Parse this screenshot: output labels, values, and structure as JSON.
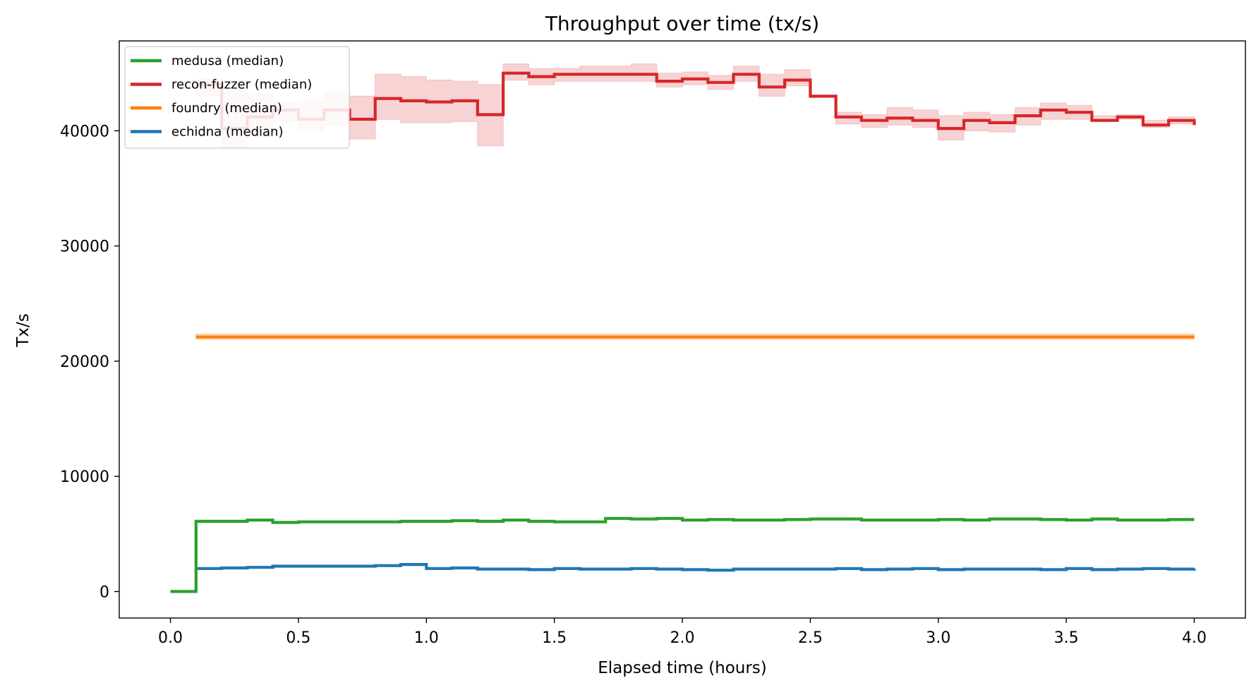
{
  "chart_data": {
    "type": "line",
    "step": true,
    "title": "Throughput over time (tx/s)",
    "xlabel": "Elapsed time (hours)",
    "ylabel": "Tx/s",
    "xlim": [
      -0.2,
      4.2
    ],
    "ylim": [
      -2300,
      47800
    ],
    "xticks": [
      0.0,
      0.5,
      1.0,
      1.5,
      2.0,
      2.5,
      3.0,
      3.5,
      4.0
    ],
    "xtick_labels": [
      "0.0",
      "0.5",
      "1.0",
      "1.5",
      "2.0",
      "2.5",
      "3.0",
      "3.5",
      "4.0"
    ],
    "yticks": [
      0,
      10000,
      20000,
      30000,
      40000
    ],
    "ytick_labels": [
      "0",
      "10000",
      "20000",
      "30000",
      "40000"
    ],
    "grid": false,
    "legend_position": "top-left",
    "series": [
      {
        "name": "medusa (median)",
        "color": "#2ca02c",
        "x": [
          0.0,
          0.1,
          0.2,
          0.3,
          0.4,
          0.5,
          0.6,
          0.7,
          0.8,
          0.9,
          1.0,
          1.1,
          1.2,
          1.3,
          1.4,
          1.5,
          1.6,
          1.7,
          1.8,
          1.9,
          2.0,
          2.1,
          2.2,
          2.3,
          2.4,
          2.5,
          2.6,
          2.7,
          2.8,
          2.9,
          3.0,
          3.1,
          3.2,
          3.3,
          3.4,
          3.5,
          3.6,
          3.7,
          3.8,
          3.9,
          4.0
        ],
        "y": [
          0,
          6100,
          6100,
          6200,
          6000,
          6050,
          6050,
          6050,
          6050,
          6100,
          6100,
          6150,
          6100,
          6200,
          6100,
          6050,
          6050,
          6350,
          6300,
          6350,
          6200,
          6250,
          6200,
          6200,
          6250,
          6300,
          6300,
          6200,
          6200,
          6200,
          6250,
          6200,
          6300,
          6300,
          6250,
          6200,
          6300,
          6200,
          6200,
          6250,
          6250
        ]
      },
      {
        "name": "recon-fuzzer (median)",
        "color": "#d62728",
        "band_color": "#f4c4c5",
        "x": [
          0.1,
          0.2,
          0.3,
          0.4,
          0.5,
          0.6,
          0.7,
          0.8,
          0.9,
          1.0,
          1.1,
          1.2,
          1.3,
          1.4,
          1.5,
          1.6,
          1.7,
          1.8,
          1.9,
          2.0,
          2.1,
          2.2,
          2.3,
          2.4,
          2.5,
          2.6,
          2.7,
          2.8,
          2.9,
          3.0,
          3.1,
          3.2,
          3.3,
          3.4,
          3.5,
          3.6,
          3.7,
          3.8,
          3.9,
          4.0
        ],
        "y": [
          44000,
          40200,
          41200,
          41800,
          41000,
          41800,
          41000,
          42800,
          42600,
          42500,
          42600,
          41400,
          45000,
          44700,
          44900,
          44900,
          44900,
          44900,
          44300,
          44500,
          44200,
          44900,
          43800,
          44400,
          43000,
          41200,
          40900,
          41100,
          40900,
          40200,
          40900,
          40700,
          41300,
          41800,
          41600,
          40900,
          41200,
          40500,
          40900,
          40500
        ],
        "y_low": [
          43000,
          38600,
          39500,
          40800,
          40000,
          40500,
          39300,
          41000,
          40700,
          40700,
          40800,
          38700,
          44400,
          44000,
          44300,
          44300,
          44300,
          44300,
          43800,
          44000,
          43600,
          44300,
          43000,
          43900,
          43000,
          40600,
          40300,
          40500,
          40300,
          39200,
          40000,
          39900,
          40500,
          41000,
          41000,
          40900,
          41000,
          40300,
          40600,
          40500
        ],
        "y_high": [
          44500,
          43800,
          43200,
          42500,
          42600,
          43400,
          43000,
          44900,
          44700,
          44400,
          44300,
          44000,
          45800,
          45400,
          45400,
          45600,
          45600,
          45800,
          45000,
          45100,
          44800,
          45600,
          44900,
          45300,
          43000,
          41600,
          41400,
          42000,
          41800,
          41300,
          41600,
          41400,
          42000,
          42400,
          42200,
          41300,
          41400,
          40900,
          41200,
          41000
        ]
      },
      {
        "name": "foundry (median)",
        "color": "#ff7f0e",
        "band_color": "#ffd2a8",
        "x": [
          0.1,
          4.0
        ],
        "y": [
          22100,
          22100
        ],
        "y_low": [
          21900,
          21900
        ],
        "y_high": [
          22350,
          22350
        ]
      },
      {
        "name": "echidna (median)",
        "color": "#1f77b4",
        "x": [
          0.1,
          0.2,
          0.3,
          0.4,
          0.5,
          0.6,
          0.7,
          0.8,
          0.9,
          1.0,
          1.1,
          1.2,
          1.3,
          1.4,
          1.5,
          1.6,
          1.7,
          1.8,
          1.9,
          2.0,
          2.1,
          2.2,
          2.3,
          2.4,
          2.5,
          2.6,
          2.7,
          2.8,
          2.9,
          3.0,
          3.1,
          3.2,
          3.3,
          3.4,
          3.5,
          3.6,
          3.7,
          3.8,
          3.9,
          4.0
        ],
        "y": [
          2000,
          2050,
          2100,
          2200,
          2200,
          2200,
          2200,
          2250,
          2350,
          2000,
          2050,
          1950,
          1950,
          1900,
          2000,
          1950,
          1950,
          2000,
          1950,
          1900,
          1850,
          1950,
          1950,
          1950,
          1950,
          2000,
          1900,
          1950,
          2000,
          1900,
          1950,
          1950,
          1950,
          1900,
          2000,
          1900,
          1950,
          2000,
          1950,
          2000
        ]
      }
    ]
  }
}
